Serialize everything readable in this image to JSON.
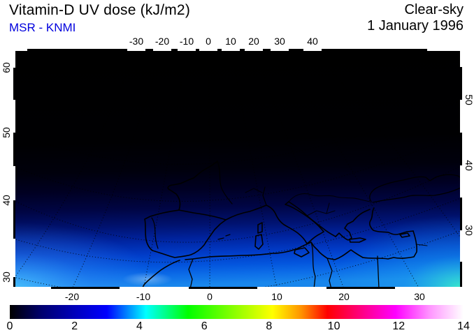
{
  "header": {
    "title": "Vitamin-D UV dose (kJ/m2)",
    "source": "MSR - KNMI",
    "condition": "Clear-sky",
    "date": "1 January 1996",
    "source_color": "#0000dd",
    "title_color": "#000000"
  },
  "chart_data": {
    "type": "heatmap",
    "title": "Vitamin-D UV dose (kJ/m2)",
    "condition": "Clear-sky",
    "date": "1 January 1996",
    "source": "MSR - KNMI",
    "projection": "satellite-view map of Europe, Mediterranean and North Africa",
    "x_axis": {
      "name": "longitude",
      "unit": "deg E",
      "top_tick_values": [
        -30,
        -20,
        -10,
        0,
        10,
        20,
        30,
        40
      ],
      "bottom_tick_values": [
        -20,
        -10,
        0,
        10,
        20,
        30
      ]
    },
    "y_axis": {
      "name": "latitude",
      "unit": "deg N",
      "left_tick_values": [
        60,
        50,
        40,
        30
      ],
      "right_tick_values": [
        50,
        40,
        30
      ]
    },
    "grid": "dotted black graticule, coastlines and country borders drawn in black",
    "colorbar": {
      "unit": "kJ/m2",
      "min": 0,
      "max": 14,
      "tick_values": [
        0,
        2,
        4,
        6,
        8,
        10,
        12,
        14
      ],
      "stops": [
        {
          "value": 0,
          "color": "#000000"
        },
        {
          "value": 1,
          "color": "#000070"
        },
        {
          "value": 2,
          "color": "#0000bb"
        },
        {
          "value": 3,
          "color": "#0000ff"
        },
        {
          "value": 4.2,
          "color": "#00ffff"
        },
        {
          "value": 5.5,
          "color": "#00ff00"
        },
        {
          "value": 8.1,
          "color": "#ffff00"
        },
        {
          "value": 9.0,
          "color": "#ff9100"
        },
        {
          "value": 9.8,
          "color": "#ff0000"
        },
        {
          "value": 11.0,
          "color": "#ff0095"
        },
        {
          "value": 11.9,
          "color": "#ff00ff"
        },
        {
          "value": 13.0,
          "color": "#ff9bff"
        },
        {
          "value": 14,
          "color": "#ffffff"
        }
      ]
    },
    "field_estimates_by_latitude": [
      {
        "lat_deg_n": 60,
        "dose_kj_m2": 0.0
      },
      {
        "lat_deg_n": 55,
        "dose_kj_m2": 0.1
      },
      {
        "lat_deg_n": 50,
        "dose_kj_m2": 0.3
      },
      {
        "lat_deg_n": 45,
        "dose_kj_m2": 0.6
      },
      {
        "lat_deg_n": 40,
        "dose_kj_m2": 1.2
      },
      {
        "lat_deg_n": 35,
        "dose_kj_m2": 2.2
      },
      {
        "lat_deg_n": 30,
        "dose_kj_m2": 3.2
      },
      {
        "lat_deg_n": 25,
        "dose_kj_m2": 4.3
      }
    ],
    "notable_features": [
      "dose near zero (black) north of ~50N in January",
      "dose increases southward: deep blue over Mediterranean, cyan/turquoise toward 25N",
      "slightly elevated pale patch over the Atlas mountains (Morocco)"
    ]
  }
}
